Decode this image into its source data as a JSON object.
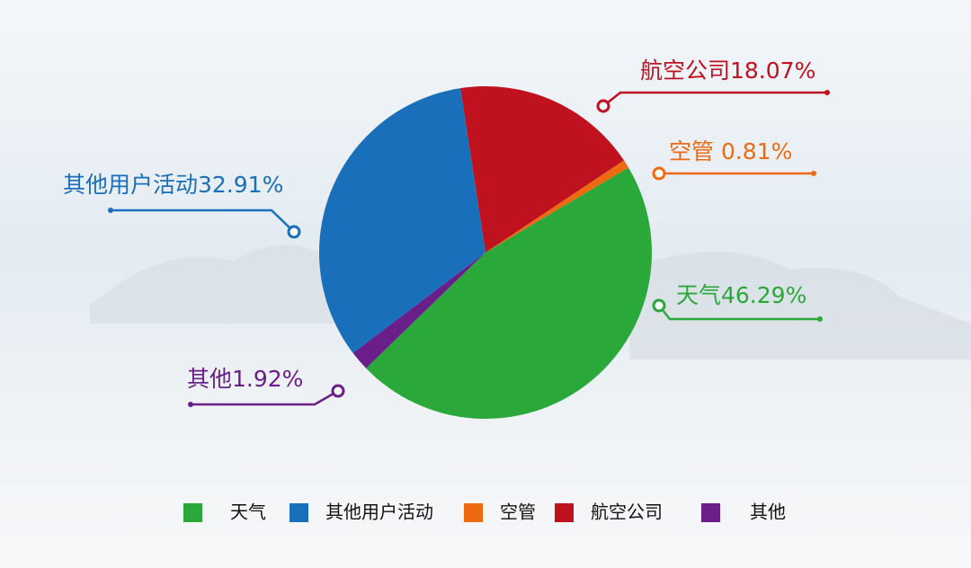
{
  "chart_data": {
    "type": "pie",
    "categories": [
      "天气",
      "其他用户活动",
      "空管",
      "航空公司",
      "其他"
    ],
    "values": [
      46.29,
      32.91,
      0.81,
      18.07,
      1.92
    ],
    "value_labels": [
      "天气46.29%",
      "其他用户活动32.91%",
      "空管 0.81%",
      "航空公司18.07%",
      "其他1.92%"
    ],
    "colors": [
      "#2aa83a",
      "#1a6fba",
      "#ee6a10",
      "#c0111f",
      "#6a1e8a"
    ],
    "legend": "bottom"
  }
}
